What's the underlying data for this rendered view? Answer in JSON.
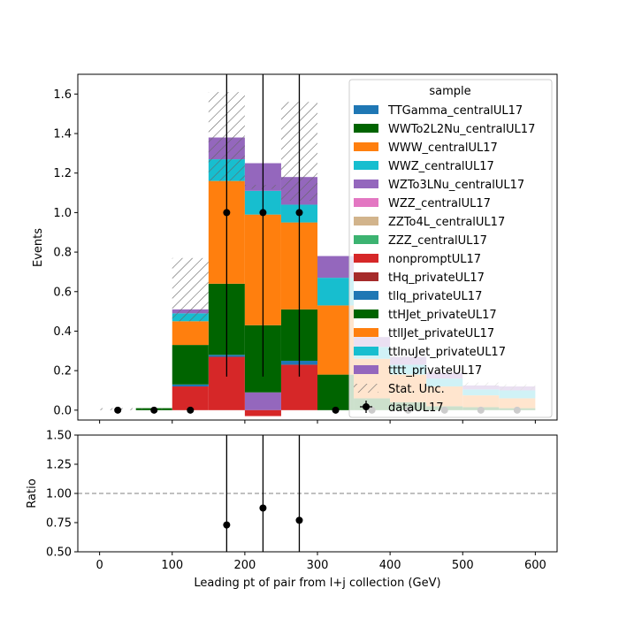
{
  "chart_data": [
    {
      "type": "bar",
      "stacked": true,
      "xlabel": "",
      "ylabel": "Events",
      "xlim": [
        -30,
        630
      ],
      "ylim": [
        -0.05,
        1.7
      ],
      "xticks": [
        0,
        100,
        200,
        300,
        400,
        500,
        600
      ],
      "ytick_labels": [
        "0.0",
        "0.2",
        "0.4",
        "0.6",
        "0.8",
        "1.0",
        "1.2",
        "1.4",
        "1.6"
      ],
      "bin_edges": [
        0,
        50,
        100,
        150,
        200,
        250,
        300,
        350,
        400,
        450,
        500,
        550,
        600
      ],
      "legend": {
        "title": "sample",
        "placement": "top-right",
        "unc_label": "Stat. Unc.",
        "data_label": "dataUL17"
      },
      "series": [
        {
          "name": "TTGamma_centralUL17",
          "color": "#1f77b4",
          "values": [
            0,
            0,
            0,
            0,
            0,
            0,
            0,
            0,
            0,
            0,
            0,
            0
          ]
        },
        {
          "name": "WWTo2L2Nu_centralUL17",
          "color": "#006400",
          "values": [
            0,
            0,
            0,
            0,
            0,
            0,
            0,
            0,
            0,
            0,
            0,
            0
          ]
        },
        {
          "name": "WWW_centralUL17",
          "color": "#ff7f0e",
          "values": [
            0,
            0,
            0,
            0,
            0,
            0,
            0,
            0,
            0,
            0,
            0,
            0
          ]
        },
        {
          "name": "WWZ_centralUL17",
          "color": "#17becf",
          "values": [
            0,
            0,
            0,
            0,
            0,
            0,
            0,
            0,
            0,
            0,
            0,
            0
          ]
        },
        {
          "name": "WZTo3LNu_centralUL17",
          "color": "#9467bd",
          "values": [
            0,
            0,
            0,
            0,
            0.09,
            0,
            0,
            0,
            0,
            0,
            0,
            0
          ]
        },
        {
          "name": "WZZ_centralUL17",
          "color": "#e377c2",
          "values": [
            0,
            0,
            0,
            0,
            0,
            0,
            0,
            0,
            0,
            0,
            0,
            0
          ]
        },
        {
          "name": "ZZTo4L_centralUL17",
          "color": "#d2b48c",
          "values": [
            0,
            0,
            0,
            0,
            0,
            0,
            0,
            0,
            0,
            0,
            0,
            0
          ]
        },
        {
          "name": "ZZZ_centralUL17",
          "color": "#3cb371",
          "values": [
            0,
            0,
            0,
            0,
            0,
            0,
            0,
            0,
            0,
            0,
            0,
            0
          ]
        },
        {
          "name": "nonpromptUL17",
          "color": "#d62728",
          "values": [
            0,
            0,
            0.12,
            0.27,
            -0.03,
            0.23,
            0,
            0,
            0,
            0,
            0,
            0
          ]
        },
        {
          "name": "tHq_privateUL17",
          "color": "#a52a2a",
          "values": [
            0,
            0,
            0,
            0,
            0,
            0,
            0,
            0,
            0,
            0,
            0,
            0
          ]
        },
        {
          "name": "tllq_privateUL17",
          "color": "#1f77b4",
          "values": [
            0,
            0,
            0.01,
            0.01,
            0,
            0.02,
            0,
            0,
            0,
            0,
            0,
            0
          ]
        },
        {
          "name": "ttHJet_privateUL17",
          "color": "#006400",
          "values": [
            0,
            0.01,
            0.2,
            0.36,
            0.34,
            0.26,
            0.18,
            0.06,
            0.04,
            0.02,
            0.015,
            0.01
          ]
        },
        {
          "name": "ttllJet_privateUL17",
          "color": "#ff7f0e",
          "values": [
            0,
            0,
            0.12,
            0.52,
            0.56,
            0.44,
            0.35,
            0.2,
            0.14,
            0.1,
            0.06,
            0.05
          ]
        },
        {
          "name": "ttlnuJet_privateUL17",
          "color": "#17becf",
          "values": [
            0,
            0,
            0.04,
            0.11,
            0.12,
            0.09,
            0.14,
            0.06,
            0.05,
            0.04,
            0.03,
            0.04
          ]
        },
        {
          "name": "tttt_privateUL17",
          "color": "#9467bd",
          "values": [
            0,
            0,
            0.02,
            0.11,
            0.14,
            0.14,
            0.11,
            0.05,
            0.04,
            0.03,
            0.02,
            0.02
          ]
        }
      ],
      "stat_unc": {
        "up": [
          0.01,
          0.01,
          0.77,
          1.61,
          1.14,
          1.56,
          0.78,
          0.35,
          0.3,
          0.2,
          0.14,
          0.13
        ],
        "down": [
          0.0,
          0.005,
          0.45,
          1.16,
          1.12,
          1.06,
          0.78,
          0.35,
          0.25,
          0.18,
          0.12,
          0.1
        ]
      },
      "data": {
        "x": [
          25,
          75,
          125,
          175,
          225,
          275,
          325,
          375,
          425,
          475,
          525,
          575
        ],
        "y": [
          0,
          0,
          0,
          1,
          1,
          1,
          0,
          0,
          0,
          0,
          0,
          0
        ],
        "yerr_low": [
          0,
          0,
          0,
          0.83,
          0.83,
          0.83,
          0,
          0,
          0,
          0,
          0,
          0
        ],
        "yerr_high": [
          0,
          0,
          0,
          2.3,
          2.3,
          2.3,
          0,
          0,
          0,
          0,
          0,
          0
        ]
      }
    },
    {
      "type": "scatter",
      "xlabel": "Leading pt of pair from l+j collection (GeV)",
      "ylabel": "Ratio",
      "xlim": [
        -30,
        630
      ],
      "ylim": [
        0.5,
        1.5
      ],
      "xticks": [
        0,
        100,
        200,
        300,
        400,
        500,
        600
      ],
      "ytick_labels": [
        "0.50",
        "0.75",
        "1.00",
        "1.25",
        "1.50"
      ],
      "reference_line": 1.0,
      "points": {
        "x": [
          175,
          225,
          275
        ],
        "y": [
          0.73,
          0.875,
          0.77
        ],
        "yerr_low": [
          0.6,
          0.73,
          0.64
        ],
        "yerr_high": [
          1.7,
          2.0,
          1.8
        ]
      }
    }
  ]
}
